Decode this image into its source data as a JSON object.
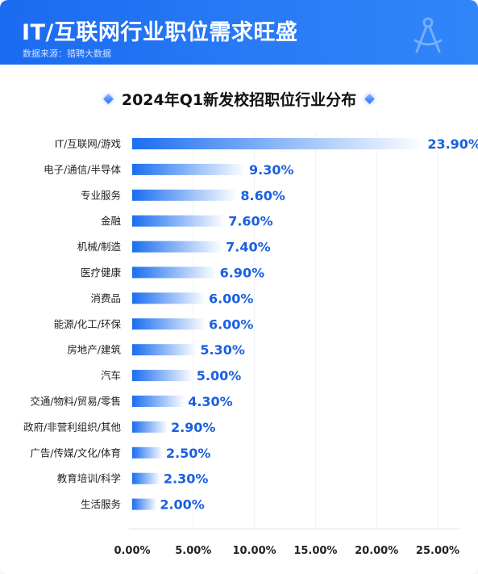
{
  "header": {
    "title": "IT/互联网行业职位需求旺盛",
    "source": "数据来源：猎聘大数据"
  },
  "colors": {
    "header_bg": "#1f72f4",
    "bar_start": "#1a6ef0",
    "bar_end": "#ffffff",
    "value_text": "#1a5fe0"
  },
  "chart_data": {
    "type": "bar",
    "orientation": "horizontal",
    "title": "2024年Q1新发校招职位行业分布",
    "categories": [
      "IT/互联网/游戏",
      "电子/通信/半导体",
      "专业服务",
      "金融",
      "机械/制造",
      "医疗健康",
      "消费品",
      "能源/化工/环保",
      "房地产/建筑",
      "汽车",
      "交通/物料/贸易/零售",
      "政府/非营利组织/其他",
      "广告/传媒/文化/体育",
      "教育培训/科学",
      "生活服务"
    ],
    "values": [
      23.9,
      9.3,
      8.6,
      7.6,
      7.4,
      6.9,
      6.0,
      6.0,
      5.3,
      5.0,
      4.3,
      2.9,
      2.5,
      2.3,
      2.0
    ],
    "value_labels": [
      "23.90%",
      "9.30%",
      "8.60%",
      "7.60%",
      "7.40%",
      "6.90%",
      "6.00%",
      "6.00%",
      "5.30%",
      "5.00%",
      "4.30%",
      "2.90%",
      "2.50%",
      "2.30%",
      "2.00%"
    ],
    "x_ticks": [
      "0.00%",
      "5.00%",
      "10.00%",
      "15.00%",
      "20.00%",
      "25.00%"
    ],
    "xlim": [
      0,
      25
    ],
    "grid": true,
    "legend": "none"
  }
}
